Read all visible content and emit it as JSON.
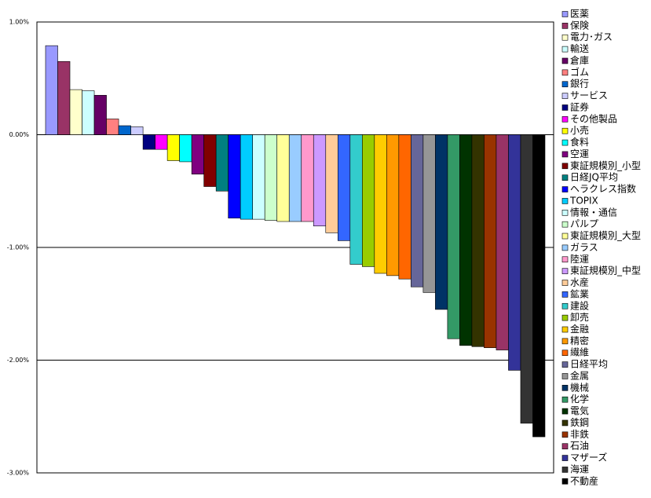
{
  "chart_data": {
    "type": "bar",
    "categories": [
      "医薬",
      "保険",
      "電力･ガス",
      "輸送",
      "倉庫",
      "ゴム",
      "銀行",
      "サービス",
      "証券",
      "その他製品",
      "小売",
      "食料",
      "空運",
      "東証規模別_小型",
      "日経JQ平均",
      "ヘラクレス指数",
      "TOPIX",
      "情報・通信",
      "パルプ",
      "東証規模別_大型",
      "ガラス",
      "陸運",
      "東証規模別_中型",
      "水産",
      "鉱業",
      "建設",
      "卸売",
      "金融",
      "精密",
      "繊維",
      "日経平均",
      "金属",
      "機械",
      "化学",
      "電気",
      "鉄鋼",
      "非鉄",
      "石油",
      "マザーズ",
      "海運",
      "不動産"
    ],
    "values": [
      0.79,
      0.65,
      0.4,
      0.39,
      0.35,
      0.14,
      0.08,
      0.07,
      -0.13,
      -0.13,
      -0.23,
      -0.24,
      -0.35,
      -0.46,
      -0.5,
      -0.74,
      -0.75,
      -0.75,
      -0.76,
      -0.77,
      -0.77,
      -0.77,
      -0.81,
      -0.87,
      -0.94,
      -1.15,
      -1.17,
      -1.23,
      -1.25,
      -1.28,
      -1.35,
      -1.4,
      -1.55,
      -1.81,
      -1.87,
      -1.88,
      -1.89,
      -1.91,
      -2.09,
      -2.56,
      -2.68
    ],
    "colors": [
      "#9999ff",
      "#993366",
      "#ffffcc",
      "#ccffff",
      "#660066",
      "#ff8080",
      "#0066cc",
      "#ccccff",
      "#000080",
      "#ff00ff",
      "#ffff00",
      "#00ffff",
      "#800080",
      "#800000",
      "#008080",
      "#0000ff",
      "#00ccff",
      "#ccffff",
      "#ccffcc",
      "#ffff99",
      "#99ccff",
      "#ff99cc",
      "#cc99ff",
      "#ffcc99",
      "#3366ff",
      "#33cccc",
      "#99cc00",
      "#ffcc00",
      "#ff9900",
      "#ff6600",
      "#666699",
      "#969696",
      "#003366",
      "#339966",
      "#003300",
      "#333300",
      "#993300",
      "#993366",
      "#333399",
      "#333333",
      "#000000"
    ],
    "ylim": [
      -3,
      1
    ],
    "yticks": [
      {
        "value": 1,
        "label": "1.00%"
      },
      {
        "value": 0,
        "label": "0.00%"
      },
      {
        "value": -1,
        "label": "-1.00%"
      },
      {
        "value": -2,
        "label": "-2.00%"
      },
      {
        "value": -3,
        "label": "-3.00%"
      }
    ],
    "grid": true,
    "legend": "right"
  }
}
